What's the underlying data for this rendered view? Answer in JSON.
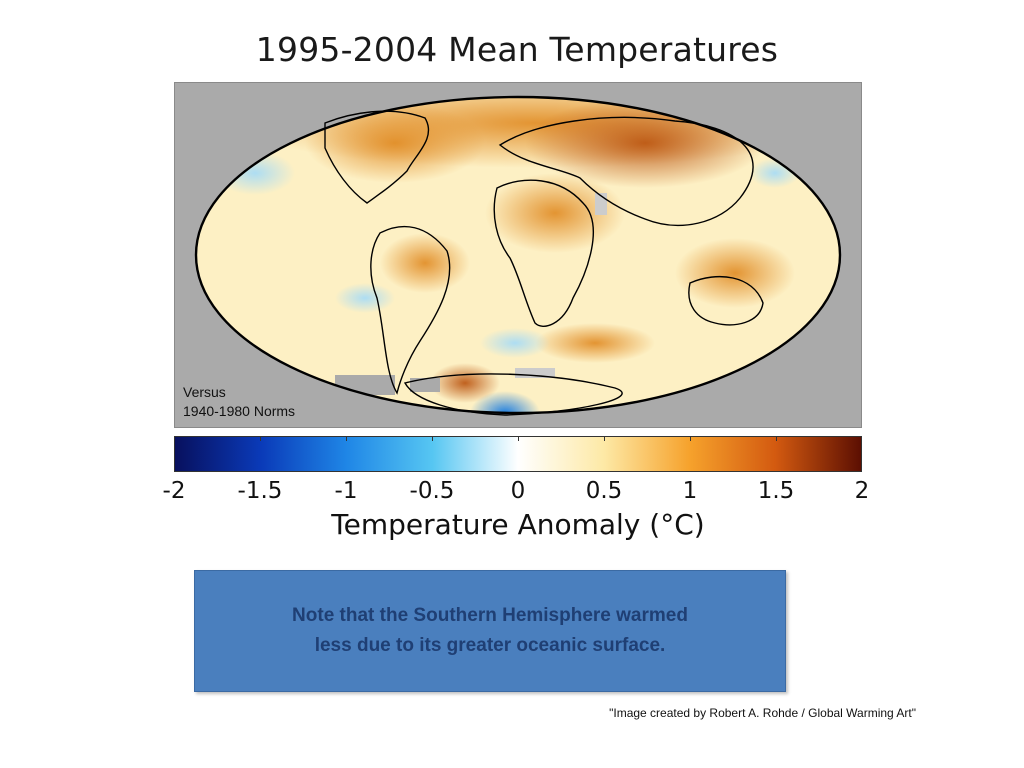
{
  "slide": {
    "title": "1995-2004 Mean Temperatures",
    "map_note_line1": "Versus",
    "map_note_line2": "1940-1980 Norms",
    "colorbar": {
      "label": "Temperature Anomaly (°C)",
      "ticks": [
        "-2",
        "-1.5",
        "-1",
        "-0.5",
        "0",
        "0.5",
        "1",
        "1.5",
        "2"
      ],
      "min": -2,
      "max": 2,
      "colors": [
        "#08105e",
        "#0a3ab8",
        "#1f86e6",
        "#56c6f2",
        "#ffffff",
        "#fde9a6",
        "#f6a22c",
        "#d35a10",
        "#5c0f02"
      ]
    },
    "note": "Note that the Southern Hemisphere warmed\nless due to its greater oceanic surface.",
    "credit": "\"Image created by Robert A. Rohde / Global Warming Art\""
  }
}
